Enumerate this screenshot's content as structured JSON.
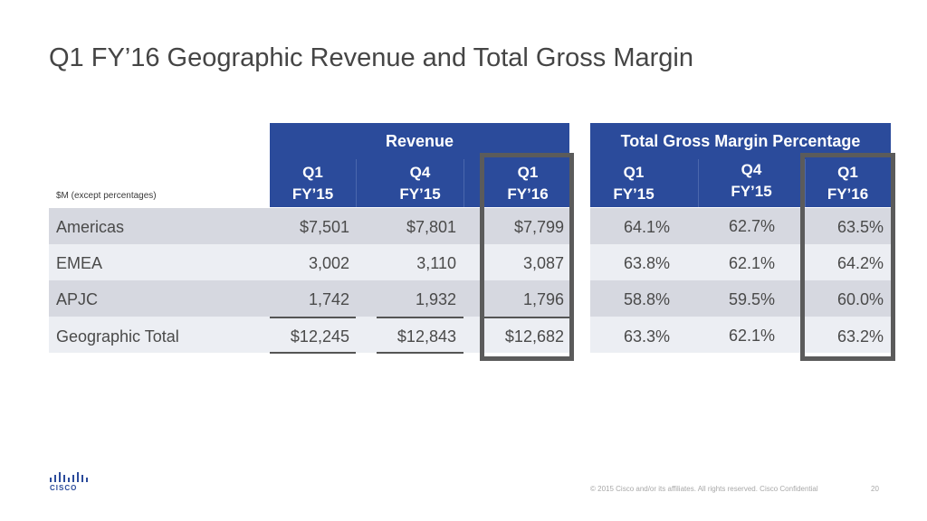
{
  "title": "Q1 FY’16 Geographic Revenue and Total Gross Margin",
  "units_label": "$M (except percentages)",
  "revenue_header": "Revenue",
  "margin_header": "Total Gross Margin Percentage",
  "columns": [
    {
      "line1": "Q1",
      "line2": "FY’15"
    },
    {
      "line1": "Q4",
      "line2": "FY’15"
    },
    {
      "line1": "Q1",
      "line2": "FY’16"
    },
    {
      "line1": "Q1",
      "line2": "FY’15"
    },
    {
      "line1": "Q4",
      "line2": "FY’15"
    },
    {
      "line1": "Q1",
      "line2": "FY’16"
    }
  ],
  "rows": [
    {
      "label": "Americas",
      "values": [
        "$7,501",
        "$7,801",
        "$7,799",
        "64.1%",
        "62.7%",
        "63.5%"
      ]
    },
    {
      "label": "EMEA",
      "values": [
        "3,002",
        "3,110",
        "3,087",
        "63.8%",
        "62.1%",
        "64.2%"
      ]
    },
    {
      "label": "APJC",
      "values": [
        "1,742",
        "1,932",
        "1,796",
        "58.8%",
        "59.5%",
        "60.0%"
      ]
    },
    {
      "label": "Geographic Total",
      "values": [
        "$12,245",
        "$12,843",
        "$12,682",
        "63.3%",
        "62.1%",
        "63.2%"
      ]
    }
  ],
  "footer": "© 2015  Cisco and/or its affiliates. All rights reserved.   Cisco Confidential",
  "page_number": "20",
  "logo": {
    "text": "CISCO",
    "icon": "cisco-bars-icon",
    "color": "#2b4b9b"
  },
  "colors": {
    "header": "#2b4b9b",
    "row_dark": "#d6d8e0",
    "row_light": "#eceef3",
    "highlight": "#5b5b5b"
  }
}
